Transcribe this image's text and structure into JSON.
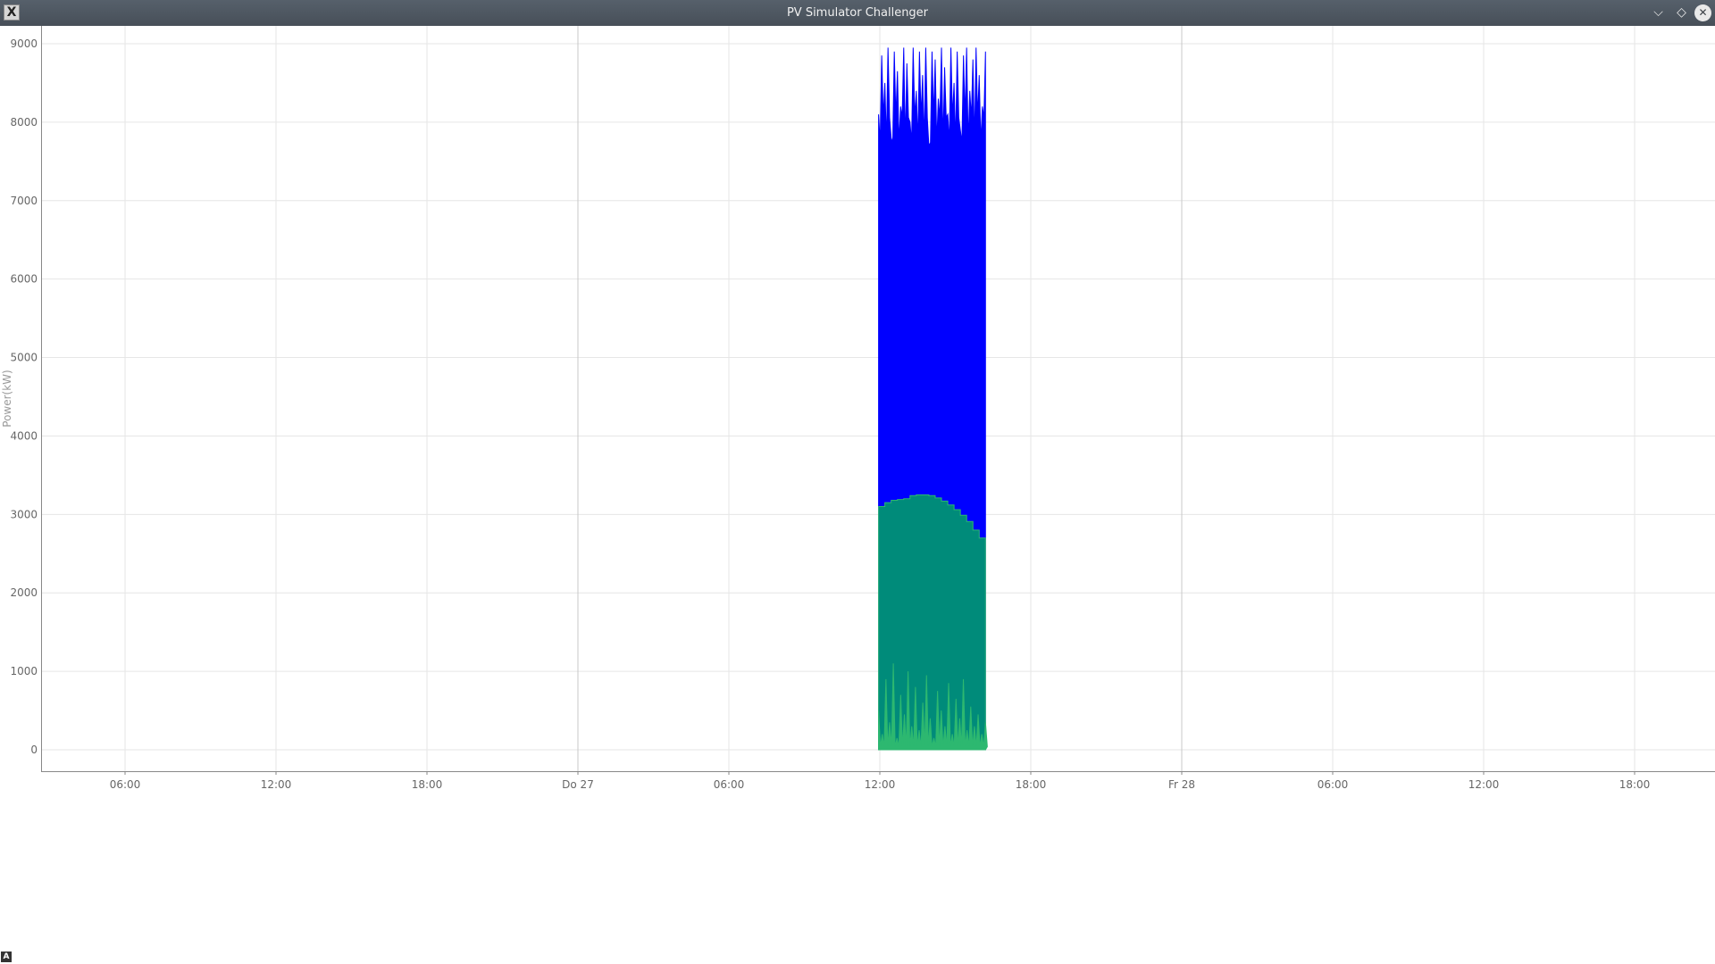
{
  "window": {
    "title": "PV Simulator Challenger",
    "app_icon_glyph": "X",
    "buttons": [
      {
        "name": "minimize-button",
        "icon": "chevron-down-icon",
        "glyph": "⌵"
      },
      {
        "name": "maximize-button",
        "icon": "diamond-icon",
        "glyph": "◇"
      },
      {
        "name": "close-button",
        "icon": "close-icon",
        "glyph": "✕"
      }
    ]
  },
  "corner_badge": "A",
  "chart_data": {
    "type": "area",
    "title": "",
    "xlabel": "",
    "ylabel": "Power(kW)",
    "ylim": [
      0,
      9200
    ],
    "yticks": [
      0,
      1000,
      2000,
      3000,
      4000,
      5000,
      6000,
      7000,
      8000,
      9000
    ],
    "x_unit": "hours since first tick",
    "xlim": [
      -3,
      189
    ],
    "xticks": [
      {
        "label": "06:00",
        "x": 0
      },
      {
        "label": "12:00",
        "x": 6
      },
      {
        "label": "18:00",
        "x": 12
      },
      {
        "label": "Do 27",
        "x": 18
      },
      {
        "label": "06:00",
        "x": 24
      },
      {
        "label": "12:00",
        "x": 30
      },
      {
        "label": "18:00",
        "x": 36
      },
      {
        "label": "Fr 28",
        "x": 42
      },
      {
        "label": "06:00",
        "x": 48
      },
      {
        "label": "12:00",
        "x": 54
      },
      {
        "label": "18:00",
        "x": 60
      }
    ],
    "grid": true,
    "series": [
      {
        "name": "",
        "color": "#0000ff",
        "x_start": 29.95,
        "x_end": 34.2,
        "min_level": 300,
        "peaks": [
          8100,
          8850,
          8500,
          8950,
          7800,
          8900,
          8650,
          8200,
          8950,
          8750,
          8000,
          8950,
          8400,
          8900,
          8600,
          8950,
          7700,
          8900,
          8800,
          8300,
          8950,
          8700,
          8100,
          8950,
          8500,
          8900,
          7900,
          8850,
          8950,
          8400,
          8800,
          8950,
          8600,
          8200,
          8900
        ]
      },
      {
        "name": "",
        "color": "#008b7a",
        "x_start": 29.95,
        "x_end": 34.2,
        "profile": [
          3100,
          3150,
          3180,
          3190,
          3200,
          3240,
          3250,
          3250,
          3240,
          3210,
          3170,
          3120,
          3060,
          2990,
          2910,
          2800,
          2700
        ]
      },
      {
        "name": "",
        "color": "#2db870",
        "x_start": 29.95,
        "x_end": 34.2,
        "peaks": [
          500,
          200,
          900,
          350,
          1100,
          150,
          700,
          450,
          1000,
          300,
          800,
          250,
          600,
          950,
          400,
          150,
          750,
          500,
          300,
          850,
          200,
          650,
          400,
          900,
          250,
          550,
          300,
          450,
          200,
          350
        ]
      }
    ]
  }
}
